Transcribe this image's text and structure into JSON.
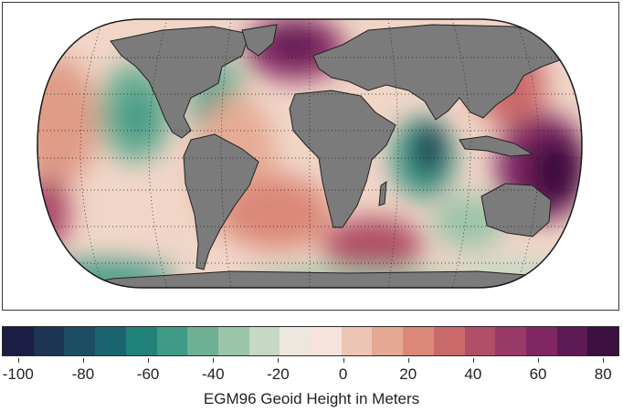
{
  "map": {
    "projection": "Robinson-like world map",
    "ocean_base_color": "#f3ddd2",
    "land_color": "#7b7b7b",
    "graticule": "dotted"
  },
  "colorbar": {
    "title": "EGM96 Geoid Height in Meters",
    "min": -105,
    "max": 85,
    "tick_values": [
      -100,
      -80,
      -60,
      -40,
      -20,
      0,
      20,
      40,
      60,
      80
    ],
    "tick_labels": [
      "-100",
      "-80",
      "-60",
      "-40",
      "-20",
      "0",
      "20",
      "40",
      "60",
      "80"
    ],
    "colors": [
      "#1c1d44",
      "#1b3553",
      "#1c4d62",
      "#1a6470",
      "#21827c",
      "#3f9a86",
      "#6eb094",
      "#9bc5a8",
      "#c6d9c5",
      "#ece7df",
      "#f5e3dc",
      "#edc5b4",
      "#e4a893",
      "#db8878",
      "#cb6a6b",
      "#b04f67",
      "#9a3a67",
      "#7f2663",
      "#5e1a55",
      "#3c1140"
    ]
  }
}
